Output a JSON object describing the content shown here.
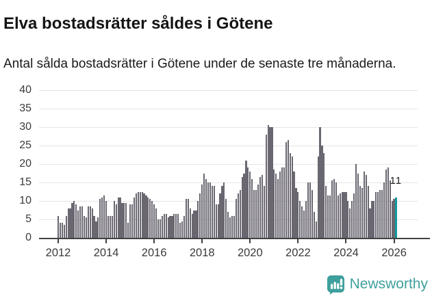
{
  "header": {
    "title": "Elva bostadsrätter såldes i Götene",
    "subtitle": "Antal sålda bostadsrätter i Götene under de senaste tre månaderna."
  },
  "chart_data": {
    "type": "bar",
    "title": "Elva bostadsrätter såldes i Götene",
    "subtitle": "Antal sålda bostadsrätter i Götene under de senaste tre månaderna.",
    "unit": "antal sålda bostadsrätter (rullande tre månader)",
    "x": {
      "start": "2012-01",
      "end": "2026-02",
      "interval": "monthly"
    },
    "values": [
      6,
      4,
      4,
      3.5,
      6,
      8,
      8,
      9.5,
      10,
      9,
      7.5,
      8.5,
      8.5,
      6,
      5.5,
      8.5,
      8.5,
      8,
      6,
      4.5,
      5.5,
      10.5,
      11,
      11.5,
      10,
      6,
      6,
      6,
      10,
      9,
      11,
      11,
      9.5,
      9.5,
      9.5,
      4,
      9,
      9,
      11,
      12,
      12.5,
      12.5,
      12.5,
      12,
      11.5,
      11,
      10.5,
      10,
      9,
      8,
      5,
      5,
      6,
      6.5,
      6.5,
      5.5,
      6,
      6,
      6.5,
      6.5,
      6.5,
      4,
      4.5,
      6,
      10.5,
      10.5,
      8,
      6.5,
      7.5,
      7.5,
      10,
      12,
      14.5,
      17.5,
      16,
      15,
      15,
      14,
      14,
      9,
      9,
      12,
      14,
      15,
      10.5,
      7,
      5.5,
      6,
      6,
      10.5,
      12,
      13,
      16.5,
      17.5,
      21,
      19,
      18,
      16,
      13,
      13,
      14.5,
      16.5,
      17,
      14,
      28,
      30.5,
      30,
      30,
      18.5,
      17.5,
      16,
      18,
      19,
      19,
      26,
      26.5,
      23,
      22,
      18,
      13.5,
      12.5,
      10,
      8.5,
      7.5,
      10,
      15,
      15,
      13,
      7,
      4.5,
      22,
      30,
      25,
      23,
      14,
      11.5,
      11.5,
      15.5,
      16,
      15,
      11.5,
      12,
      12.5,
      12.5,
      12.5,
      10,
      8,
      10,
      12,
      20,
      17.5,
      14,
      13.5,
      18,
      17,
      14,
      8,
      10,
      10,
      12.5,
      12.5,
      13,
      13,
      15,
      18.5,
      19,
      15.5,
      10,
      10.5,
      11
    ],
    "highlight_last": true,
    "annotation": {
      "text": "11",
      "value": 11
    },
    "ylim": [
      0,
      40
    ],
    "yticks": [
      0,
      5,
      10,
      15,
      20,
      25,
      30,
      35,
      40
    ],
    "xticks": [
      2012,
      2014,
      2016,
      2018,
      2020,
      2022,
      2024,
      2026
    ],
    "grid": true,
    "legend": "none",
    "bar_color": "#6a6771",
    "highlight_color": "#0f9b9e",
    "axis_color": "#414141",
    "gridline_color": "#e4e4e6"
  },
  "footer": {
    "brand": "Newsworthy",
    "brand_color": "#3f9f9c",
    "logo_icon": "bar-chart-speech-bubble-icon"
  }
}
